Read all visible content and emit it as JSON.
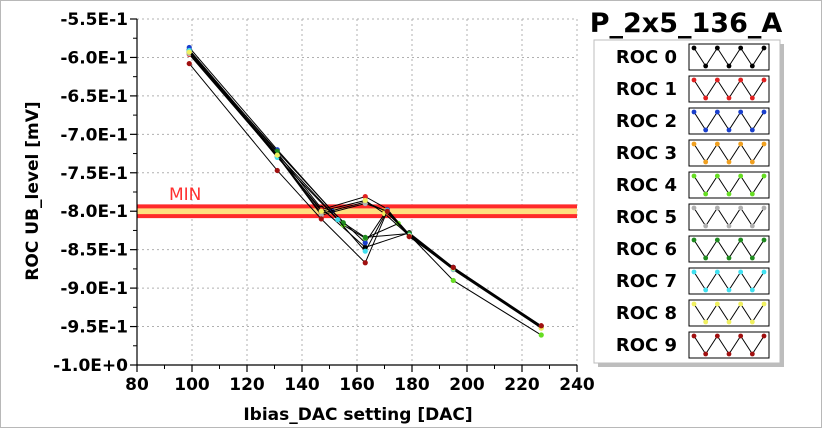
{
  "chart_data": {
    "type": "line",
    "title": "P_2x5_136_A",
    "xlabel": "Ibias_DAC setting [DAC]",
    "ylabel": "ROC UB_level [mV]",
    "xlim": [
      80,
      240
    ],
    "ylim": [
      -1.0,
      -0.55
    ],
    "x_ticks": [
      "80",
      "100",
      "120",
      "140",
      "160",
      "180",
      "200",
      "220",
      "240"
    ],
    "y_ticks": [
      "-5.5E-1",
      "-6.0E-1",
      "-6.5E-1",
      "-7.0E-1",
      "-7.5E-1",
      "-8.0E-1",
      "-8.5E-1",
      "-9.0E-1",
      "-9.5E-1",
      "-1.0E+0"
    ],
    "grid": true,
    "legend_position": "right",
    "min_line": {
      "label": "MIN",
      "value": -0.8,
      "band": [
        -0.805,
        -0.795
      ],
      "color": "#ff2a2a"
    },
    "series": [
      {
        "name": "ROC 0",
        "color": "#000000",
        "x": [
          99,
          131,
          147,
          163,
          179,
          195,
          227
        ],
        "y": [
          -0.59,
          -0.724,
          -0.796,
          -0.847,
          -0.828,
          -0.873,
          -0.951
        ]
      },
      {
        "name": "ROC 1",
        "color": "#e02020",
        "x": [
          99,
          131,
          147,
          163,
          171,
          179,
          195,
          227
        ],
        "y": [
          -0.596,
          -0.729,
          -0.798,
          -0.781,
          -0.797,
          -0.833,
          -0.875,
          -0.949
        ]
      },
      {
        "name": "ROC 2",
        "color": "#1a3fcc",
        "x": [
          99,
          131,
          151,
          163,
          171,
          179,
          195,
          227
        ],
        "y": [
          -0.587,
          -0.72,
          -0.8,
          -0.841,
          -0.798,
          -0.83,
          -0.873,
          -0.95
        ]
      },
      {
        "name": "ROC 3",
        "color": "#f0a020",
        "x": [
          99,
          131,
          147,
          163,
          170,
          179,
          195,
          227
        ],
        "y": [
          -0.594,
          -0.727,
          -0.803,
          -0.788,
          -0.799,
          -0.831,
          -0.874,
          -0.951
        ]
      },
      {
        "name": "ROC 4",
        "color": "#66dd22",
        "x": [
          99,
          131,
          155,
          163,
          175,
          195,
          227
        ],
        "y": [
          -0.592,
          -0.726,
          -0.818,
          -0.835,
          -0.816,
          -0.89,
          -0.961
        ]
      },
      {
        "name": "ROC 5",
        "color": "#b0b0b0",
        "x": [
          99,
          131,
          147,
          163,
          171,
          179,
          195,
          227
        ],
        "y": [
          -0.595,
          -0.728,
          -0.805,
          -0.79,
          -0.8,
          -0.832,
          -0.876,
          -0.952
        ]
      },
      {
        "name": "ROC 6",
        "color": "#1f8a1f",
        "x": [
          99,
          131,
          155,
          163,
          179,
          195,
          227
        ],
        "y": [
          -0.593,
          -0.722,
          -0.815,
          -0.834,
          -0.829,
          -0.874,
          -0.95
        ]
      },
      {
        "name": "ROC 7",
        "color": "#40e0f0",
        "x": [
          99,
          131,
          153,
          163,
          171,
          179,
          195,
          227
        ],
        "y": [
          -0.591,
          -0.73,
          -0.811,
          -0.852,
          -0.799,
          -0.831,
          -0.875,
          -0.95
        ]
      },
      {
        "name": "ROC 8",
        "color": "#f0f060",
        "x": [
          99,
          131,
          147,
          163,
          170,
          179,
          195,
          227
        ],
        "y": [
          -0.593,
          -0.727,
          -0.8,
          -0.786,
          -0.803,
          -0.832,
          -0.874,
          -0.952
        ]
      },
      {
        "name": "ROC 9",
        "color": "#a01010",
        "x": [
          99,
          131,
          147,
          163,
          171,
          179,
          195,
          227
        ],
        "y": [
          -0.608,
          -0.747,
          -0.81,
          -0.867,
          -0.8,
          -0.833,
          -0.873,
          -0.949
        ]
      }
    ]
  }
}
